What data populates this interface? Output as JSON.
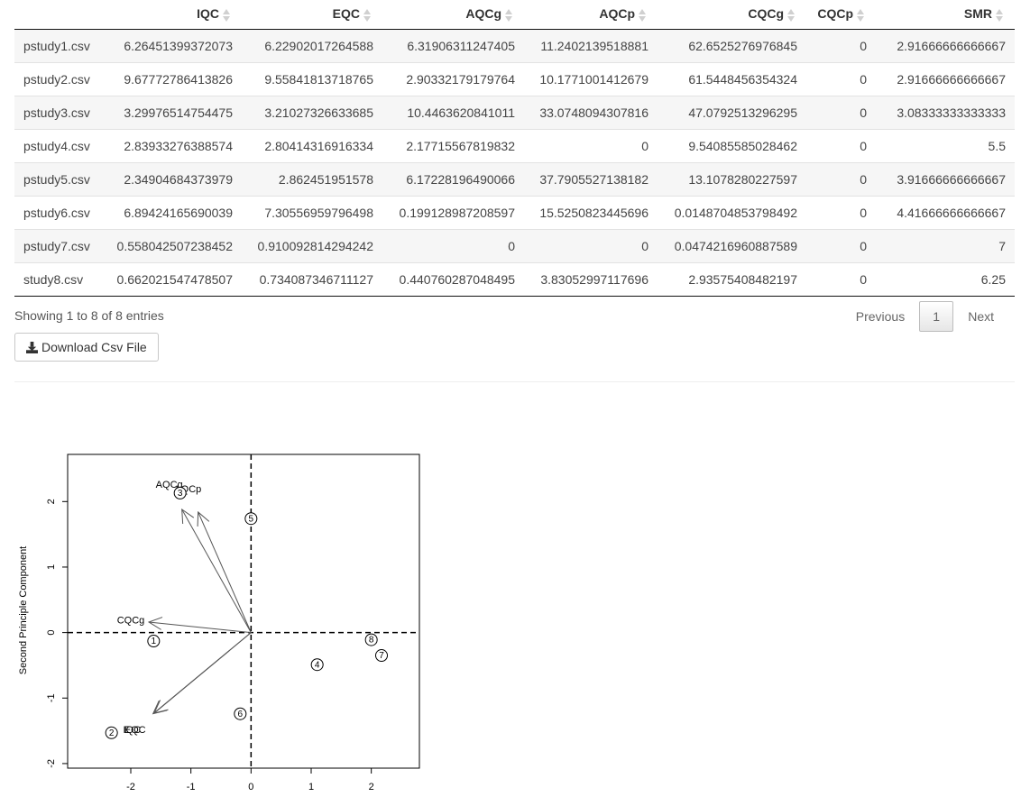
{
  "table": {
    "columns": [
      "",
      "IQC",
      "EQC",
      "AQCg",
      "AQCp",
      "CQCg",
      "CQCp",
      "SMR"
    ],
    "rows": [
      [
        "pstudy1.csv",
        "6.26451399372073",
        "6.22902017264588",
        "6.31906311247405",
        "11.2402139518881",
        "62.6525276976845",
        "0",
        "2.91666666666667"
      ],
      [
        "pstudy2.csv",
        "9.67772786413826",
        "9.55841813718765",
        "2.90332179179764",
        "10.1771001412679",
        "61.5448456354324",
        "0",
        "2.91666666666667"
      ],
      [
        "pstudy3.csv",
        "3.29976514754475",
        "3.21027326633685",
        "10.4463620841011",
        "33.0748094307816",
        "47.0792513296295",
        "0",
        "3.08333333333333"
      ],
      [
        "pstudy4.csv",
        "2.83933276388574",
        "2.80414316916334",
        "2.17715567819832",
        "0",
        "9.54085585028462",
        "0",
        "5.5"
      ],
      [
        "pstudy5.csv",
        "2.34904684373979",
        "2.862451951578",
        "6.17228196490066",
        "37.7905527138182",
        "13.1078280227597",
        "0",
        "3.91666666666667"
      ],
      [
        "pstudy6.csv",
        "6.89424165690039",
        "7.30556959796498",
        "0.199128987208597",
        "15.5250823445696",
        "0.0148704853798492",
        "0",
        "4.41666666666667"
      ],
      [
        "pstudy7.csv",
        "0.558042507238452",
        "0.910092814294242",
        "0",
        "0",
        "0.0474216960887589",
        "0",
        "7"
      ],
      [
        "study8.csv",
        "0.662021547478507",
        "0.734087346711127",
        "0.440760287048495",
        "3.83052997117696",
        "2.93575408482197",
        "0",
        "6.25"
      ]
    ]
  },
  "info": "Showing 1 to 8 of 8 entries",
  "pagination": {
    "previous": "Previous",
    "current": "1",
    "next": "Next"
  },
  "download_label": "Download Csv File",
  "chart_data": {
    "type": "scatter",
    "title": "",
    "xlabel": "",
    "ylabel": "Second Principle Component",
    "xlim": [
      -3.05,
      2.8
    ],
    "ylim": [
      -2.07,
      2.72
    ],
    "x_ticks": [
      -2,
      -1,
      0,
      1,
      2
    ],
    "y_ticks": [
      -2,
      -1,
      0,
      1,
      2
    ],
    "reference_lines": {
      "x": 0,
      "y": 0,
      "style": "dashed"
    },
    "points": [
      {
        "label": "1",
        "x": -1.62,
        "y": -0.13
      },
      {
        "label": "2",
        "x": -2.32,
        "y": -1.53
      },
      {
        "label": "3",
        "x": -1.18,
        "y": 2.13
      },
      {
        "label": "4",
        "x": 1.1,
        "y": -0.49
      },
      {
        "label": "5",
        "x": 0.0,
        "y": 1.74
      },
      {
        "label": "6",
        "x": -0.18,
        "y": -1.24
      },
      {
        "label": "7",
        "x": 2.17,
        "y": -0.35
      },
      {
        "label": "8",
        "x": 2.0,
        "y": -0.11
      }
    ],
    "vectors": [
      {
        "label": "AQCg",
        "x": -1.15,
        "y": 1.88,
        "label_x": -1.36,
        "label_y": 2.25
      },
      {
        "label": "AQCp",
        "x": -0.88,
        "y": 1.84,
        "label_x": -1.05,
        "label_y": 2.18
      },
      {
        "label": "CQCg",
        "x": -1.7,
        "y": 0.16,
        "label_x": -2.0,
        "label_y": 0.18
      },
      {
        "label": "IQC",
        "x": -1.61,
        "y": -1.23,
        "label_x": -1.98,
        "label_y": -1.49
      },
      {
        "label": "EQC",
        "x": -1.63,
        "y": -1.24,
        "label_x": -1.93,
        "label_y": -1.49
      }
    ]
  }
}
